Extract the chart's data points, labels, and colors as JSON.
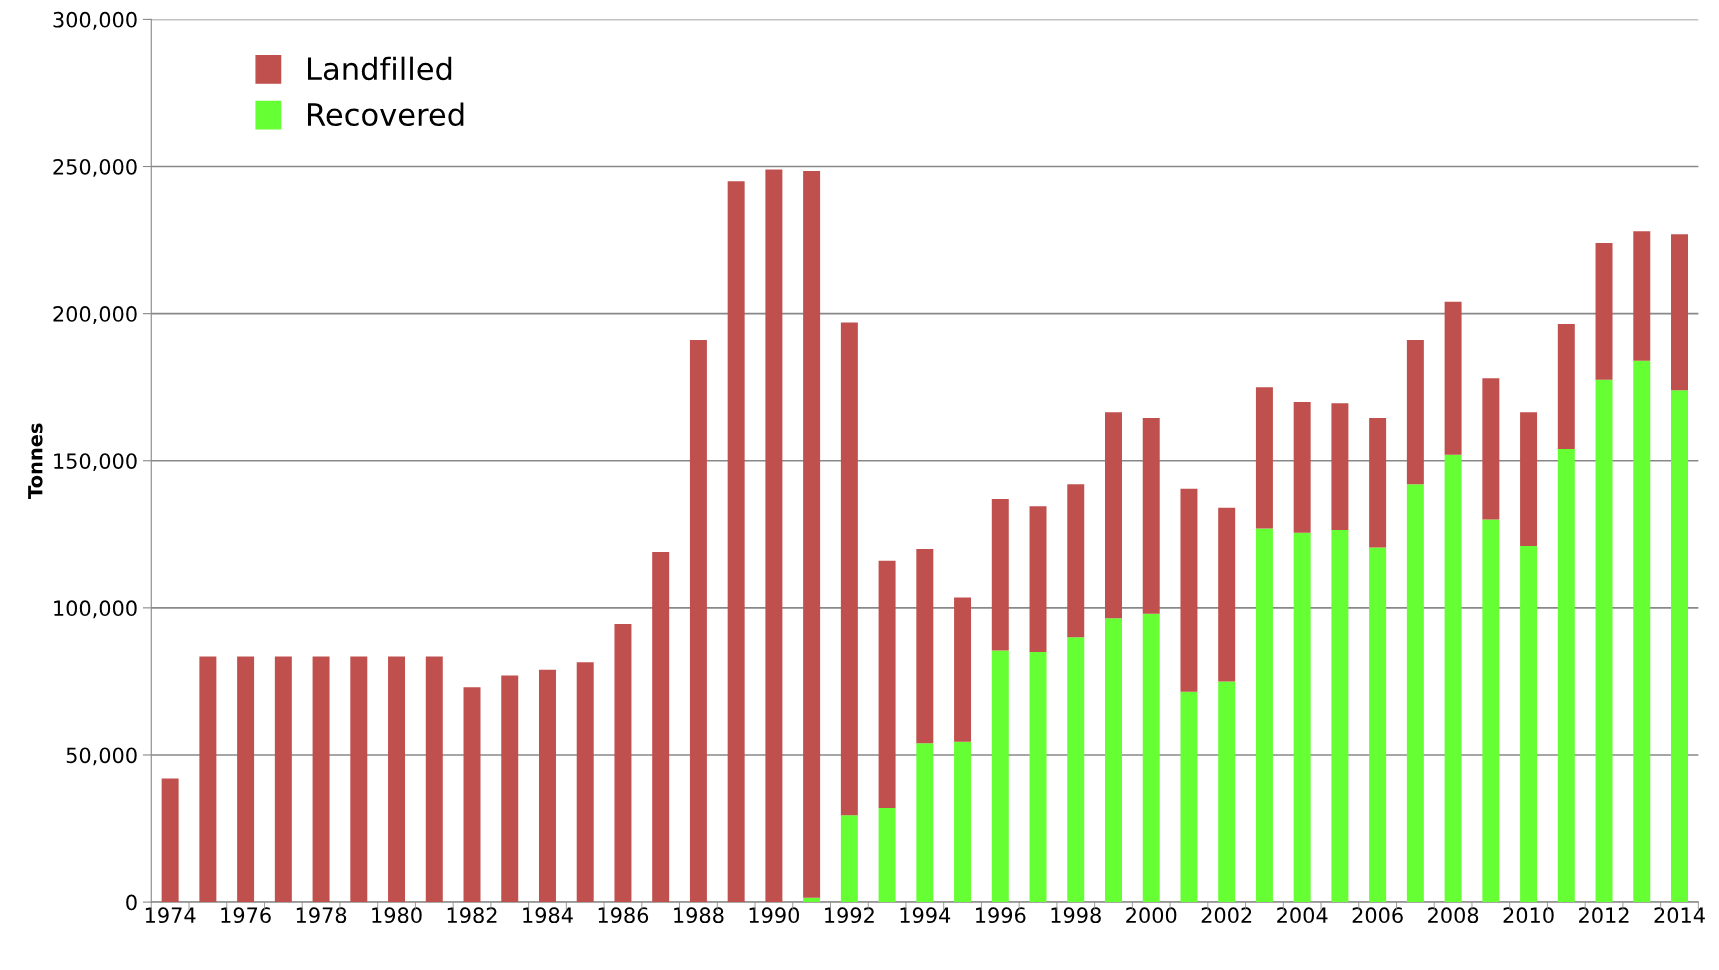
{
  "chart_data": {
    "type": "bar",
    "stacked": true,
    "ylabel": "Tonnes",
    "categories": [
      "1974",
      null,
      "1976",
      null,
      "1978",
      null,
      "1980",
      null,
      "1982",
      null,
      "1984",
      null,
      "1986",
      null,
      "1988",
      null,
      "1990",
      null,
      "1992",
      null,
      "1994",
      null,
      "1996",
      null,
      "1998",
      null,
      "2000",
      null,
      "2002",
      null,
      "2004",
      null,
      "2006",
      null,
      "2008",
      null,
      "2010",
      null,
      "2012",
      null,
      "2014"
    ],
    "series": [
      {
        "name": "Recovered",
        "color": "#66ff33",
        "values": [
          0,
          0,
          0,
          0,
          0,
          0,
          0,
          0,
          0,
          0,
          0,
          0,
          0,
          0,
          0,
          0,
          0,
          1500,
          29500,
          32000,
          54000,
          54500,
          85500,
          85000,
          90000,
          96500,
          98000,
          71500,
          75000,
          127000,
          125500,
          126500,
          120500,
          142000,
          152000,
          130000,
          121000,
          154000,
          177500,
          184000,
          174000
        ]
      },
      {
        "name": "Landfilled",
        "color": "#c0504d",
        "values": [
          42000,
          83500,
          83500,
          83500,
          83500,
          83500,
          83500,
          83500,
          73000,
          77000,
          79000,
          81500,
          94500,
          119000,
          191000,
          245000,
          249000,
          247000,
          167500,
          84000,
          66000,
          49000,
          51500,
          49500,
          52000,
          70000,
          66500,
          69000,
          59000,
          48000,
          44500,
          43000,
          44000,
          49000,
          52000,
          48000,
          45500,
          42500,
          46500,
          44000,
          53000
        ]
      }
    ],
    "ylim": [
      0,
      300000
    ],
    "yticks": [
      {
        "value": 0,
        "label": "0"
      },
      {
        "value": 50000,
        "label": "50,000"
      },
      {
        "value": 100000,
        "label": "100,000"
      },
      {
        "value": 150000,
        "label": "150,000"
      },
      {
        "value": 200000,
        "label": "200,000"
      },
      {
        "value": 250000,
        "label": "250,000"
      },
      {
        "value": 300000,
        "label": "300,000"
      }
    ],
    "grid": "y",
    "legend": "top left"
  }
}
